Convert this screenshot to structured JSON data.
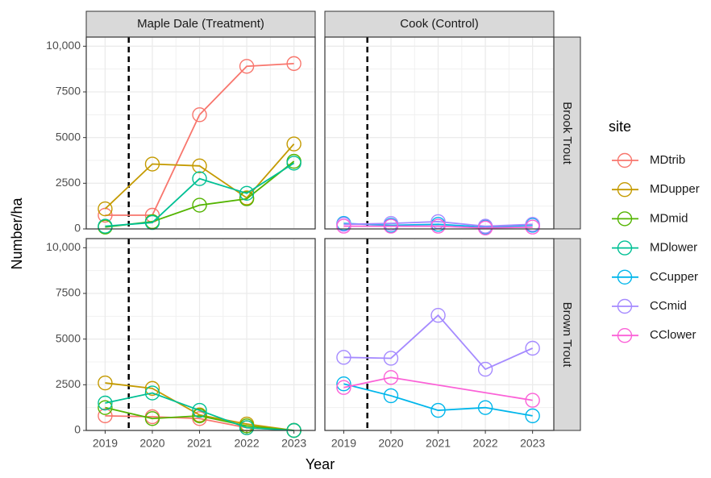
{
  "facet_columns": [
    "Maple Dale (Treatment)",
    "Cook (Control)"
  ],
  "facet_rows": [
    "Brook Trout",
    "Brown Trout"
  ],
  "y_label": "Number/ha",
  "x_label": "Year",
  "legend_title": "site",
  "xlim": [
    2018.6,
    2023.45
  ],
  "xticks": [
    2019,
    2020,
    2021,
    2022,
    2023
  ],
  "ylim": [
    0,
    10500
  ],
  "yticks": [
    0,
    2500,
    5000,
    7500,
    {
      "value": 10000,
      "label": "10,000"
    }
  ],
  "vline": 2019.5,
  "grid": true,
  "chart_data": [
    {
      "type": "line",
      "x": [
        2019,
        2020,
        2021,
        2022,
        2023
      ],
      "series": [
        {
          "name": "MDtrib",
          "color": "#F8766D",
          "values": [
            750,
            750,
            6250,
            8900,
            9050
          ]
        },
        {
          "name": "MDupper",
          "color": "#C49A00",
          "values": [
            1100,
            3550,
            3450,
            1700,
            4650
          ]
        },
        {
          "name": "MDmid",
          "color": "#53B400",
          "values": [
            100,
            400,
            1300,
            1650,
            3700
          ]
        },
        {
          "name": "MDlower",
          "color": "#00C094",
          "values": [
            150,
            350,
            2750,
            1950,
            3600
          ]
        }
      ]
    },
    {
      "type": "line",
      "x": [
        2019,
        2020,
        2021,
        2022,
        2023
      ],
      "series": [
        {
          "name": "CCupper",
          "color": "#00B6EB",
          "values": [
            300,
            200,
            250,
            100,
            200
          ]
        },
        {
          "name": "CCmid",
          "color": "#A58AFF",
          "values": [
            250,
            300,
            400,
            150,
            250
          ]
        },
        {
          "name": "CClower",
          "color": "#FB61D7",
          "values": [
            150,
            150,
            150,
            50,
            100
          ]
        }
      ]
    },
    {
      "type": "line",
      "x": [
        2019,
        2020,
        2021,
        2022,
        2023
      ],
      "series": [
        {
          "name": "MDtrib",
          "color": "#F8766D",
          "values": [
            800,
            750,
            650,
            150,
            0
          ]
        },
        {
          "name": "MDupper",
          "color": "#C49A00",
          "values": [
            2600,
            2300,
            850,
            350,
            0
          ]
        },
        {
          "name": "MDmid",
          "color": "#53B400",
          "values": [
            1250,
            650,
            800,
            250,
            0
          ]
        },
        {
          "name": "MDlower",
          "color": "#00C094",
          "values": [
            1500,
            2050,
            1100,
            150,
            0
          ]
        }
      ]
    },
    {
      "type": "line",
      "x": [
        2019,
        2020,
        2021,
        2022,
        2023
      ],
      "series": [
        {
          "name": "CCupper",
          "color": "#00B6EB",
          "values": [
            2550,
            1900,
            1100,
            1250,
            800
          ]
        },
        {
          "name": "CCmid",
          "color": "#A58AFF",
          "values": [
            4000,
            3950,
            6300,
            3350,
            4500
          ]
        },
        {
          "name": "CClower",
          "color": "#FB61D7",
          "x": [
            2019,
            2020,
            2023
          ],
          "values": [
            2350,
            2900,
            1650
          ]
        }
      ]
    }
  ]
}
